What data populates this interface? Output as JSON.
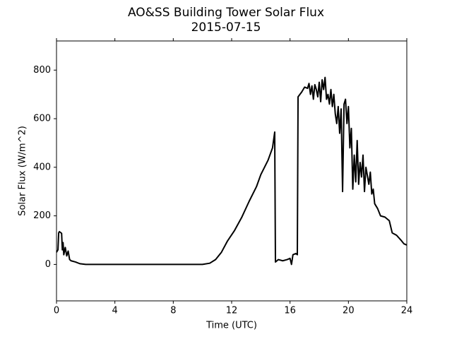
{
  "chart_data": {
    "type": "line",
    "title": "AO&SS Building Tower Solar Flux",
    "subtitle": "2015-07-15",
    "x_label": "Time (UTC)",
    "y_label": "Solar Flux (W/m^2)",
    "color": "#000000",
    "xlim": [
      0,
      24
    ],
    "ylim": [
      -150,
      920
    ],
    "xticks": [
      0,
      4,
      8,
      12,
      16,
      20,
      24
    ],
    "yticks": [
      0,
      200,
      400,
      600,
      800
    ],
    "x": [
      0,
      0.1,
      0.15,
      0.2,
      0.35,
      0.4,
      0.45,
      0.5,
      0.6,
      0.7,
      0.8,
      0.9,
      1.0,
      1.3,
      1.6,
      2.0,
      10.0,
      10.5,
      10.9,
      11.3,
      11.7,
      12.2,
      12.7,
      13.2,
      13.7,
      14.0,
      14.5,
      14.8,
      14.95,
      15.0,
      15.2,
      15.5,
      15.8,
      16.0,
      16.1,
      16.2,
      16.4,
      16.5,
      16.55,
      16.8,
      17.0,
      17.2,
      17.3,
      17.4,
      17.5,
      17.6,
      17.7,
      17.8,
      17.9,
      18.0,
      18.1,
      18.2,
      18.3,
      18.4,
      18.5,
      18.6,
      18.7,
      18.8,
      18.9,
      19.0,
      19.1,
      19.2,
      19.3,
      19.4,
      19.5,
      19.6,
      19.7,
      19.8,
      19.9,
      20.0,
      20.1,
      20.2,
      20.3,
      20.4,
      20.5,
      20.6,
      20.7,
      20.8,
      20.9,
      21.0,
      21.1,
      21.2,
      21.4,
      21.5,
      21.6,
      21.7,
      21.8,
      22.0,
      22.2,
      22.5,
      22.8,
      23.0,
      23.3,
      23.6,
      23.8,
      24
    ],
    "values": [
      50,
      60,
      130,
      135,
      128,
      60,
      90,
      40,
      70,
      35,
      55,
      20,
      15,
      10,
      3,
      0,
      0,
      5,
      20,
      50,
      95,
      140,
      195,
      260,
      320,
      370,
      430,
      480,
      545,
      10,
      20,
      15,
      20,
      25,
      0,
      40,
      45,
      40,
      690,
      710,
      730,
      725,
      745,
      700,
      735,
      680,
      740,
      720,
      690,
      750,
      670,
      760,
      720,
      770,
      680,
      700,
      660,
      720,
      650,
      700,
      620,
      580,
      650,
      540,
      640,
      300,
      660,
      680,
      580,
      650,
      480,
      560,
      310,
      450,
      340,
      510,
      330,
      420,
      360,
      450,
      300,
      400,
      330,
      380,
      290,
      310,
      250,
      230,
      200,
      195,
      180,
      130,
      120,
      100,
      85,
      80
    ]
  }
}
